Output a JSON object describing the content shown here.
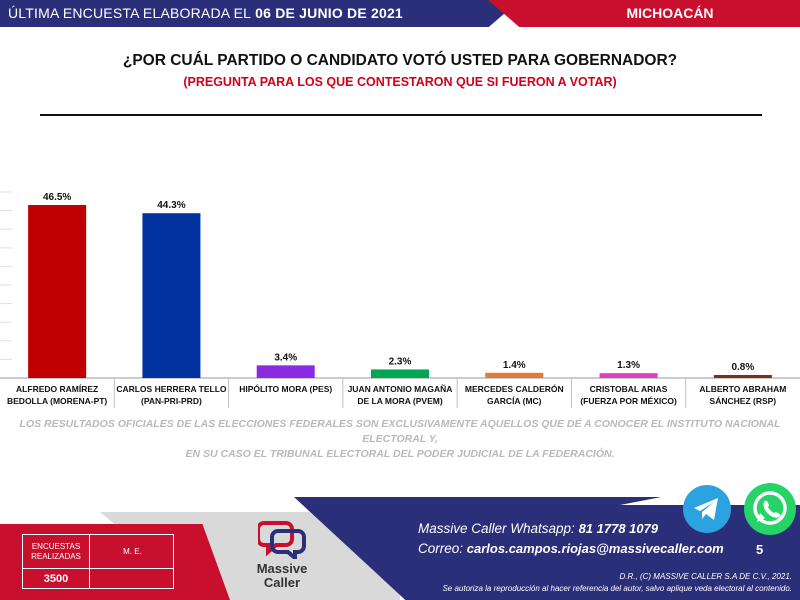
{
  "header": {
    "prefix": "ÚLTIMA ENCUESTA ELABORADA EL",
    "date": "06 DE JUNIO DE 2021",
    "state": "MICHOACÁN"
  },
  "question": {
    "title": "¿POR CUÁL PARTIDO O CANDIDATO VOTÓ USTED PARA GOBERNADOR?",
    "subtitle": "(PREGUNTA PARA LOS QUE CONTESTARON QUE SI FUERON A VOTAR)"
  },
  "chart_data": {
    "type": "bar",
    "categories": [
      [
        "ALFREDO RAMÍREZ",
        "BEDOLLA (MORENA-PT)"
      ],
      [
        "CARLOS HERRERA TELLO",
        "(PAN-PRI-PRD)"
      ],
      [
        "HIPÓLITO MORA (PES)"
      ],
      [
        "JUAN ANTONIO MAGAÑA",
        "DE LA MORA (PVEM)"
      ],
      [
        "MERCEDES CALDERÓN",
        "GARCÍA (MC)"
      ],
      [
        "CRISTOBAL ARIAS",
        "(FUERZA POR MÉXICO)"
      ],
      [
        "ALBERTO ABRAHAM",
        "SÁNCHEZ (RSP)"
      ]
    ],
    "values": [
      46.5,
      44.3,
      3.4,
      2.3,
      1.4,
      1.3,
      0.8
    ],
    "value_labels": [
      "46.5%",
      "44.3%",
      "3.4%",
      "2.3%",
      "1.4%",
      "1.3%",
      "0.8%"
    ],
    "colors": [
      "#c00000",
      "#0033a0",
      "#8a2be2",
      "#00a651",
      "#e07b39",
      "#e040c0",
      "#7b2d1e"
    ],
    "ylim": [
      0,
      50
    ],
    "grid": true,
    "legend": "none"
  },
  "disclaimer": {
    "line1": "LOS RESULTADOS OFICIALES DE LAS ELECCIONES FEDERALES SON EXCLUSIVAMENTE AQUELLOS QUE DÉ A CONOCER EL INSTITUTO NACIONAL ELECTORAL Y,",
    "line2": "EN SU CASO EL TRIBUNAL ELECTORAL DEL PODER JUDICIAL DE LA FEDERACIÓN."
  },
  "footer": {
    "table": {
      "col1_header": "ENCUESTAS REALIZADAS",
      "col2_header": "M. E.",
      "col1_value": "3500",
      "col2_value": ""
    },
    "logo": {
      "line1": "Massive",
      "line2": "Caller"
    },
    "whatsapp_label": "Massive Caller Whatsapp:",
    "whatsapp_number": "81 1778 1079",
    "email_label": "Correo:",
    "email": "carlos.campos.riojas@massivecaller.com",
    "page": "5",
    "legal1": "D.R., (C) MASSIVE CALLER S.A DE C.V., 2021.",
    "legal2": "Se autoriza la reproducción al hacer referencia del autor, salvo aplique veda electoral al contenido.",
    "icons": [
      "telegram-icon",
      "whatsapp-icon"
    ],
    "colors": {
      "navy": "#2b2f7a",
      "red": "#c8102e"
    }
  }
}
